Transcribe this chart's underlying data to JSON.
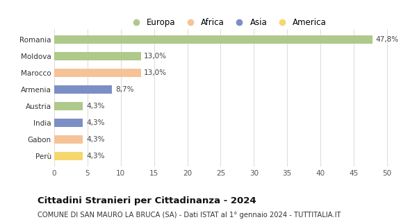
{
  "countries": [
    "Romania",
    "Moldova",
    "Marocco",
    "Armenia",
    "Austria",
    "India",
    "Gabon",
    "Perù"
  ],
  "values": [
    47.8,
    13.0,
    13.0,
    8.7,
    4.3,
    4.3,
    4.3,
    4.3
  ],
  "labels": [
    "47,8%",
    "13,0%",
    "13,0%",
    "8,7%",
    "4,3%",
    "4,3%",
    "4,3%",
    "4,3%"
  ],
  "colors": [
    "#aec98a",
    "#aec98a",
    "#f5c397",
    "#7b8fc4",
    "#aec98a",
    "#7b8fc4",
    "#f5c397",
    "#f5d76e"
  ],
  "legend_labels": [
    "Europa",
    "Africa",
    "Asia",
    "America"
  ],
  "legend_colors": [
    "#aec98a",
    "#f5c397",
    "#7b8fc4",
    "#f5d76e"
  ],
  "xlim": [
    0,
    52
  ],
  "xticks": [
    0,
    5,
    10,
    15,
    20,
    25,
    30,
    35,
    40,
    45,
    50
  ],
  "title": "Cittadini Stranieri per Cittadinanza - 2024",
  "subtitle": "COMUNE DI SAN MAURO LA BRUCA (SA) - Dati ISTAT al 1° gennaio 2024 - TUTTITALIA.IT",
  "bg_color": "#ffffff",
  "grid_color": "#dddddd",
  "bar_height": 0.5,
  "label_fontsize": 7.5,
  "tick_fontsize": 7.5,
  "legend_fontsize": 8.5,
  "title_fontsize": 9.5,
  "subtitle_fontsize": 7.2
}
